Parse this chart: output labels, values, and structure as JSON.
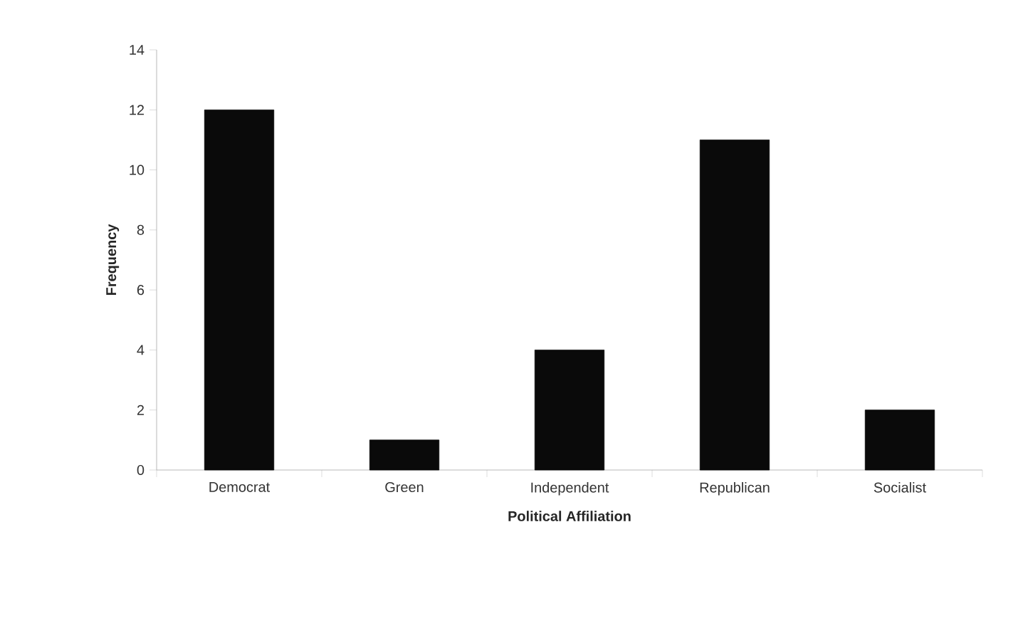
{
  "chart_data": {
    "type": "bar",
    "xlabel": "Political Affiliation",
    "ylabel": "Frequency",
    "categories": [
      "Democrat",
      "Green",
      "Independent",
      "Republican",
      "Socialist"
    ],
    "values": [
      12,
      1,
      4,
      11,
      2
    ],
    "color": "#0a0a0a",
    "ylim": [
      0,
      14
    ],
    "yticks": [
      0,
      2,
      4,
      6,
      8,
      10,
      12,
      14
    ],
    "grid": false
  }
}
